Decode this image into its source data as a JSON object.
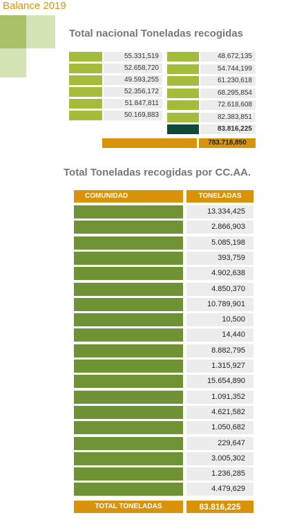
{
  "header": {
    "title": "Balance 2019"
  },
  "national": {
    "title": "Total nacional Toneladas recogidas",
    "left_values": [
      "55.331,519",
      "52.658,720",
      "49.593,255",
      "52.356,172",
      "51.847,811",
      "50.169,883"
    ],
    "right_values": [
      "48.672,135",
      "54.744,199",
      "61.230,618",
      "68.295,854",
      "72.618,608",
      "82.383,851"
    ],
    "highlight_value": "83.816,225",
    "grand_total": "783.718,850"
  },
  "table": {
    "title": "Total Toneladas recogidas por CC.AA.",
    "headers": [
      "COMUNIDAD",
      "TONELADAS"
    ],
    "rows": [
      "13.334,425",
      "2.866,903",
      "5.085,198",
      "393,759",
      "4.902,638",
      "4.850,370",
      "10.789,901",
      "10,500",
      "14,440",
      "8.882,795",
      "1.315,927",
      "15.654,890",
      "1.091,352",
      "4.621,582",
      "1.050,682",
      "229,647",
      "3.005,302",
      "1.236,285",
      "4.479,629"
    ],
    "total_label": "TOTAL TONELADAS",
    "total_value": "83.816,225"
  }
}
